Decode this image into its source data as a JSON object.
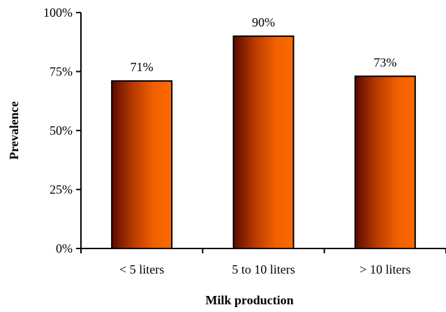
{
  "chart_data": {
    "type": "bar",
    "categories": [
      "< 5 liters",
      "5 to 10 liters",
      "> 10 liters"
    ],
    "values": [
      71,
      90,
      73
    ],
    "data_labels": [
      "71%",
      "90%",
      "73%"
    ],
    "xlabel": "Milk production",
    "ylabel": "Prevalence",
    "ylim": [
      0,
      100
    ],
    "yticks": [
      0,
      25,
      50,
      75,
      100
    ],
    "ytick_labels": [
      "0%",
      "25%",
      "50%",
      "75%",
      "100%"
    ],
    "grid": false,
    "bar_gradient": [
      "#5a0a00",
      "#b73a00",
      "#f06000",
      "#ff6a00"
    ]
  }
}
